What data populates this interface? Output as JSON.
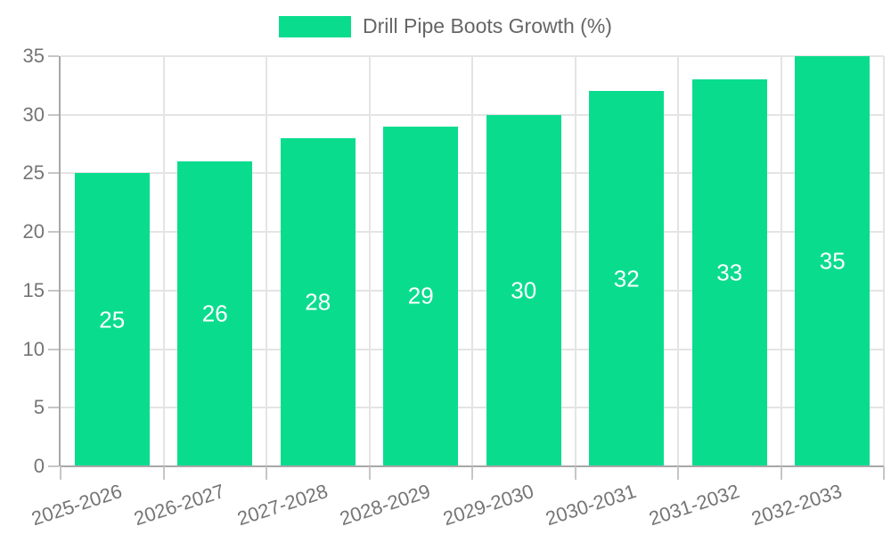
{
  "chart_data": {
    "type": "bar",
    "title": "Drill Pipe Boots Growth (%)",
    "categories": [
      "2025-2026",
      "2026-2027",
      "2027-2028",
      "2028-2029",
      "2029-2030",
      "2030-2031",
      "2031-2032",
      "2032-2033"
    ],
    "values": [
      25,
      26,
      28,
      29,
      30,
      32,
      33,
      35
    ],
    "xlabel": "",
    "ylabel": "",
    "ylim": [
      0,
      35
    ],
    "yticks": [
      0,
      5,
      10,
      15,
      20,
      25,
      30,
      35
    ],
    "grid": true,
    "legend_position": "top",
    "x_tick_rotation_deg": -18,
    "bar_color": "#0adc8e",
    "value_label_color": "#ffffff"
  },
  "colors": {
    "background": "#ffffff",
    "grid": "#e4e4e4",
    "axis": "#a8a8a8",
    "tick_mark": "#c6c6c6",
    "tick_text": "#757575",
    "legend_text": "#666666"
  }
}
